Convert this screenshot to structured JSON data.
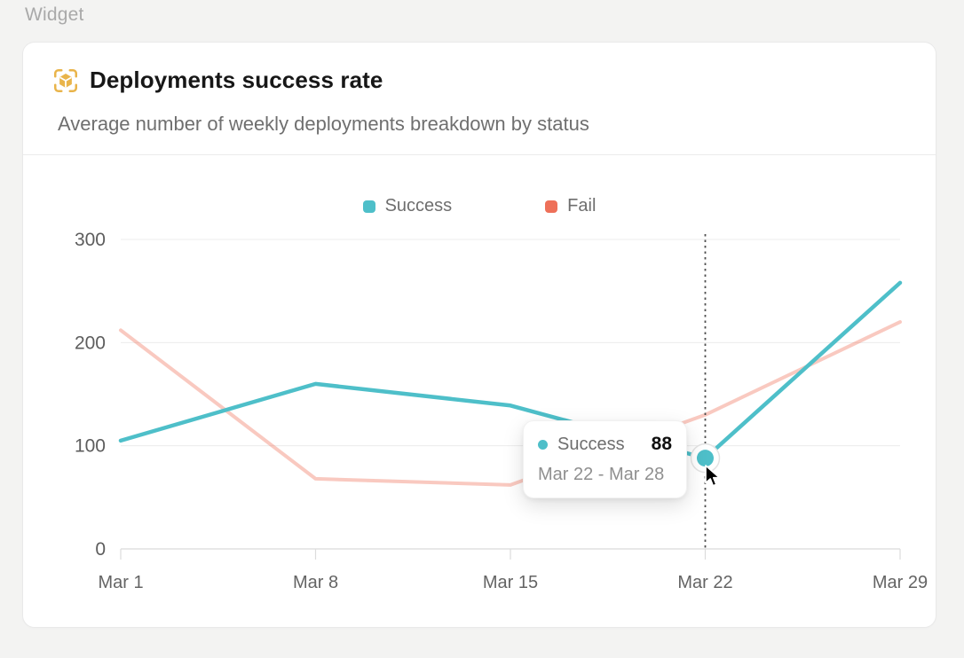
{
  "widget_label": "Widget",
  "card": {
    "title": "Deployments success rate",
    "subtitle": "Average number of weekly deployments breakdown by status",
    "icon": {
      "name": "deployment-cube-icon",
      "color": "#e9b44a"
    }
  },
  "chart_data": {
    "type": "line",
    "title": "Deployments success rate",
    "x_labels": [
      "Mar 1",
      "Mar 8",
      "Mar 15",
      "Mar 22",
      "Mar 29"
    ],
    "series": [
      {
        "name": "Success",
        "color": "#4ebfc9",
        "dimmed": false,
        "values": [
          105,
          160,
          139,
          88,
          258
        ]
      },
      {
        "name": "Fail",
        "color": "#ee7059",
        "dimmed": true,
        "values": [
          212,
          68,
          62,
          130,
          220
        ]
      }
    ],
    "ylim": [
      0,
      300
    ],
    "yticks": [
      0,
      100,
      200,
      300
    ],
    "grid": "horizontal",
    "legend_position": "top-center",
    "highlight": {
      "series": "Success",
      "x_index": 3,
      "value": 88,
      "guide_line": "dotted-vertical"
    }
  },
  "tooltip": {
    "series_label": "Success",
    "value": "88",
    "date_range": "Mar 22 - Mar 28",
    "dot_color": "#4ebfc9"
  }
}
